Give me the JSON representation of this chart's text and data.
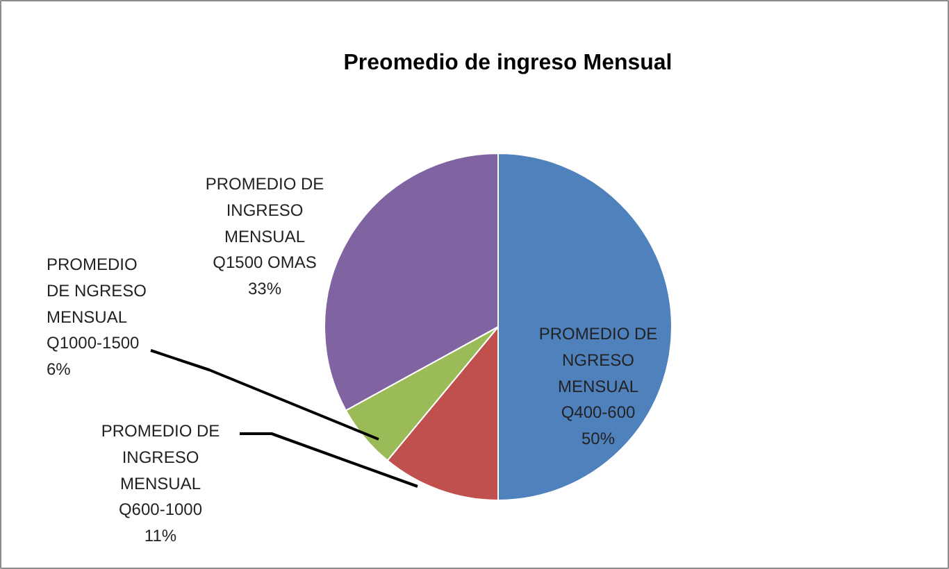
{
  "chart_data": {
    "type": "pie",
    "title": "Preomedio de ingreso Mensual",
    "categories": [
      "PROMEDIO DE\nNGRESO\nMENSUAL\nQ400-600",
      "PROMEDIO DE\nINGRESO\nMENSUAL\nQ600-1000",
      "PROMEDIO\nDE NGRESO\nMENSUAL\nQ1000-1500",
      "PROMEDIO DE\nINGRESO\nMENSUAL\nQ1500 OMAS"
    ],
    "values": [
      50,
      11,
      6,
      33
    ],
    "colors": [
      "#4f81bd",
      "#c0504d",
      "#9bbb59",
      "#8064a2"
    ],
    "value_labels": [
      "50%",
      "11%",
      "6%",
      "33%"
    ]
  }
}
